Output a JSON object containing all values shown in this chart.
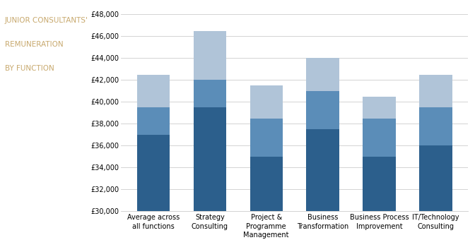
{
  "title_lines": [
    "JUNIOR CONSULTANTS'",
    "REMUNERATION",
    "BY FUNCTION"
  ],
  "categories": [
    "Average across\nall functions",
    "Strategy\nConsulting",
    "Project &\nProgramme\nManagement",
    "Business\nTransformation",
    "Business Process\nImprovement",
    "IT/Technology\nConsulting"
  ],
  "basic_salary": [
    37000,
    39500,
    35000,
    37500,
    35000,
    36000
  ],
  "benefits": [
    2500,
    2500,
    3500,
    3500,
    3500,
    3500
  ],
  "bonus": [
    3000,
    4500,
    3000,
    3000,
    2000,
    3000
  ],
  "color_basic": "#2C5F8C",
  "color_benefits": "#5B8DB8",
  "color_bonus": "#B0C4D8",
  "ylim_min": 30000,
  "ylim_max": 48000,
  "ytick_step": 2000,
  "title_color": "#C8A96E",
  "title_fontsize": 7.5,
  "axis_fontsize": 7.0,
  "legend_fontsize": 7.5,
  "background_color": "#FFFFFF",
  "grid_color": "#CCCCCC"
}
